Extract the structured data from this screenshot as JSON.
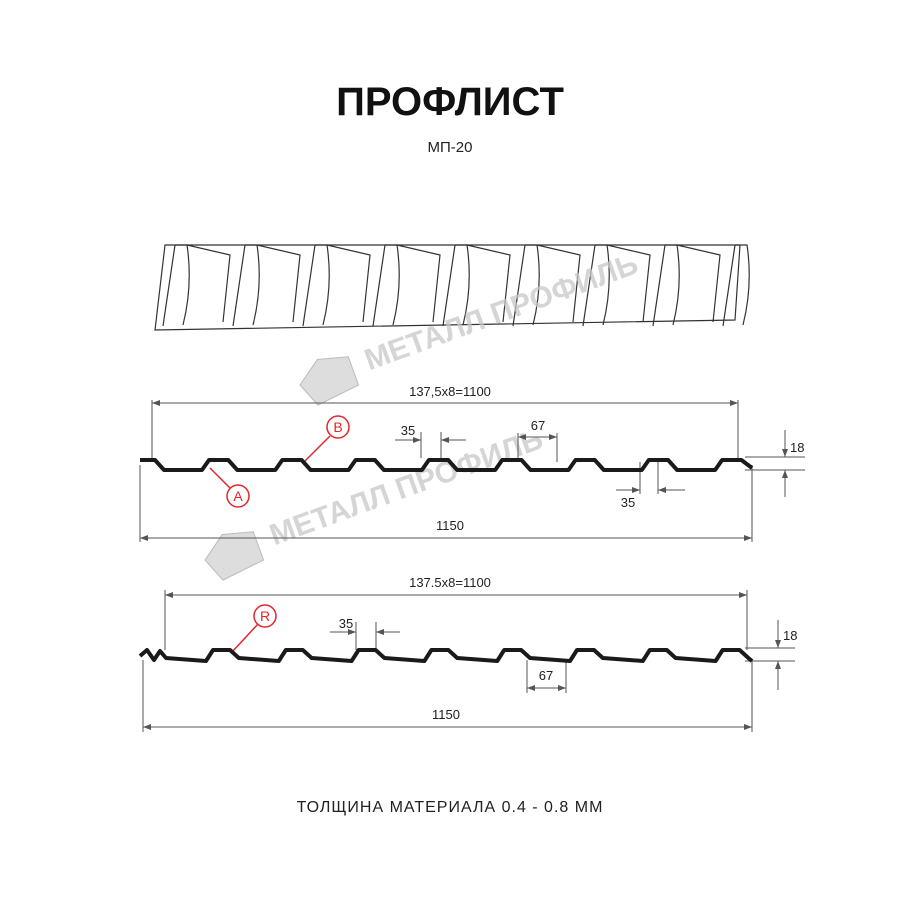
{
  "header": {
    "title": "ПРОФЛИСТ",
    "subtitle": "МП-20"
  },
  "watermark": "МЕТАЛЛ ПРОФИЛЬ",
  "profile_1": {
    "pitch_total": "137,5x8=1100",
    "top_width": "35",
    "bottom_width": "67",
    "height": "18",
    "bottom_gap": "35",
    "full_width": "1150",
    "marker_a": "A",
    "marker_b": "B"
  },
  "profile_2": {
    "pitch_total": "137.5x8=1100",
    "top_width": "35",
    "height": "18",
    "bottom_width": "67",
    "full_width": "1150",
    "marker_r": "R"
  },
  "footer": "ТОЛЩИНА МАТЕРИАЛА 0.4 - 0.8 ММ"
}
